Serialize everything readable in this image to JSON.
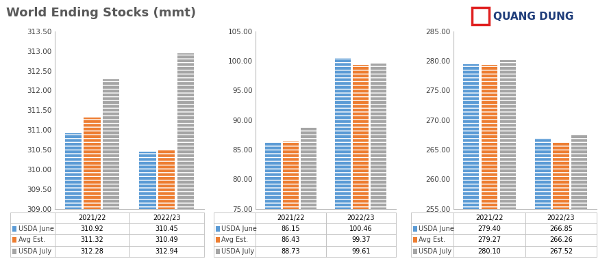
{
  "title": "World Ending Stocks (mmt)",
  "brand": "QUANG DUNG",
  "chart_data": [
    {
      "type": "bar",
      "categories": [
        "2021/22",
        "2022/23"
      ],
      "series": [
        {
          "name": "USDA June",
          "color": "#5B9BD5",
          "values": [
            310.92,
            310.45
          ],
          "value_labels": [
            "310.92",
            "310.45"
          ]
        },
        {
          "name": "Avg Est.",
          "color": "#ED7D31",
          "values": [
            311.32,
            310.49
          ],
          "value_labels": [
            "311.32",
            "310.49"
          ]
        },
        {
          "name": "USDA July",
          "color": "#A5A5A5",
          "values": [
            312.28,
            312.94
          ],
          "value_labels": [
            "312.28",
            "312.94"
          ]
        }
      ],
      "ylim": [
        309,
        313.5
      ],
      "yticks": [
        {
          "value": 309,
          "label": "309.00"
        },
        {
          "value": 309.5,
          "label": "309.50"
        },
        {
          "value": 310,
          "label": "310.00"
        },
        {
          "value": 310.5,
          "label": "310.50"
        },
        {
          "value": 311,
          "label": "311.00"
        },
        {
          "value": 311.5,
          "label": "311.50"
        },
        {
          "value": 312,
          "label": "312.00"
        },
        {
          "value": 312.5,
          "label": "312.50"
        },
        {
          "value": 313,
          "label": "313.00"
        },
        {
          "value": 313.5,
          "label": "313.50"
        }
      ],
      "grid": false,
      "tick_labels": "y"
    },
    {
      "type": "bar",
      "categories": [
        "2021/22",
        "2022/23"
      ],
      "series": [
        {
          "name": "USDA June",
          "color": "#5B9BD5",
          "values": [
            86.15,
            100.46
          ],
          "value_labels": [
            "86.15",
            "100.46"
          ]
        },
        {
          "name": "Avg Est.",
          "color": "#ED7D31",
          "values": [
            86.43,
            99.37
          ],
          "value_labels": [
            "86.43",
            "99.37"
          ]
        },
        {
          "name": "USDA July",
          "color": "#A5A5A5",
          "values": [
            88.73,
            99.61
          ],
          "value_labels": [
            "88.73",
            "99.61"
          ]
        }
      ],
      "ylim": [
        75,
        105
      ],
      "yticks": [
        {
          "value": 75,
          "label": "75.00"
        },
        {
          "value": 80,
          "label": "80.00"
        },
        {
          "value": 85,
          "label": "85.00"
        },
        {
          "value": 90,
          "label": "90.00"
        },
        {
          "value": 95,
          "label": "95.00"
        },
        {
          "value": 100,
          "label": "100.00"
        },
        {
          "value": 105,
          "label": "105.00"
        }
      ],
      "grid": false,
      "tick_labels": "y"
    },
    {
      "type": "bar",
      "categories": [
        "2021/22",
        "2022/23"
      ],
      "series": [
        {
          "name": "USDA June",
          "color": "#5B9BD5",
          "values": [
            279.4,
            266.85
          ],
          "value_labels": [
            "279.40",
            "266.85"
          ]
        },
        {
          "name": "Avg Est.",
          "color": "#ED7D31",
          "values": [
            279.27,
            266.26
          ],
          "value_labels": [
            "279.27",
            "266.26"
          ]
        },
        {
          "name": "USDA July",
          "color": "#A5A5A5",
          "values": [
            280.1,
            267.52
          ],
          "value_labels": [
            "280.10",
            "267.52"
          ]
        }
      ],
      "ylim": [
        255,
        285
      ],
      "yticks": [
        {
          "value": 255,
          "label": "255.00"
        },
        {
          "value": 260,
          "label": "260.00"
        },
        {
          "value": 265,
          "label": "265.00"
        },
        {
          "value": 270,
          "label": "270.00"
        },
        {
          "value": 275,
          "label": "275.00"
        },
        {
          "value": 280,
          "label": "280.00"
        },
        {
          "value": 285,
          "label": "285.00"
        }
      ],
      "grid": false,
      "tick_labels": "y"
    }
  ]
}
